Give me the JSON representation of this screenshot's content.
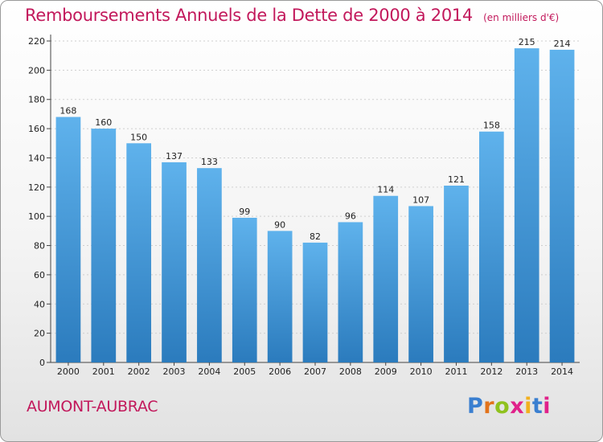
{
  "header": {
    "title": "Remboursements Annuels de la Dette de 2000 à 2014",
    "unit": "(en milliers d'€)"
  },
  "footer": {
    "commune": "AUMONT-AUBRAC",
    "logo_letters": [
      "P",
      "r",
      "o",
      "x",
      "i",
      "t",
      "i"
    ],
    "logo_colors": [
      "#3a7fd0",
      "#e2731b",
      "#8fc21e",
      "#e0218a",
      "#f2b01e",
      "#3a7fd0",
      "#e0218a"
    ]
  },
  "chart_data": {
    "type": "bar",
    "categories": [
      "2000",
      "2001",
      "2002",
      "2003",
      "2004",
      "2005",
      "2006",
      "2007",
      "2008",
      "2009",
      "2010",
      "2011",
      "2012",
      "2013",
      "2014"
    ],
    "values": [
      168,
      160,
      150,
      137,
      133,
      99,
      90,
      82,
      96,
      114,
      107,
      121,
      158,
      215,
      214
    ],
    "data_labels": [
      "168",
      "160",
      "150",
      "137",
      "133",
      "99",
      "90",
      "82",
      "96",
      "114",
      "107",
      "121",
      "158",
      "215",
      "214"
    ],
    "yticks": [
      0,
      20,
      40,
      60,
      80,
      100,
      120,
      140,
      160,
      180,
      200,
      220
    ],
    "ylim": [
      0,
      220
    ],
    "grid": true,
    "bar_color_top": "#5fb2ec",
    "bar_color_bottom": "#2b7bbd"
  }
}
